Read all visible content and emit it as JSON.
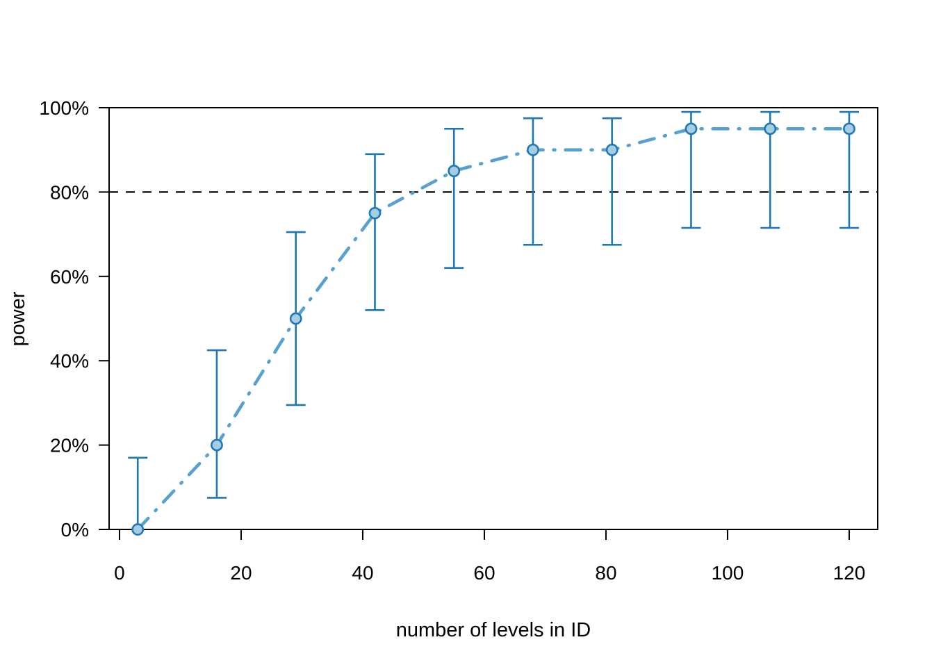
{
  "chart_data": {
    "type": "line",
    "title": "",
    "xlabel": "number of levels in ID",
    "ylabel": "power",
    "x_ticks": [
      0,
      20,
      40,
      60,
      80,
      100,
      120
    ],
    "y_ticks": [
      {
        "value": 0,
        "label": "0%"
      },
      {
        "value": 20,
        "label": "20%"
      },
      {
        "value": 40,
        "label": "40%"
      },
      {
        "value": 60,
        "label": "60%"
      },
      {
        "value": 80,
        "label": "80%"
      },
      {
        "value": 100,
        "label": "100%"
      }
    ],
    "xlim": [
      -1.71,
      124.69
    ],
    "ylim": [
      0,
      100
    ],
    "grid": false,
    "legend": null,
    "reference_line": {
      "y": 80,
      "style": "dashed",
      "color": "#000000"
    },
    "series": [
      {
        "x": [
          3,
          16,
          29,
          42,
          55,
          68,
          81,
          94,
          107,
          120
        ],
        "y": [
          0,
          20,
          50,
          75,
          85,
          90,
          90,
          95,
          95,
          95
        ],
        "ci_low": [
          0,
          7.5,
          29.5,
          52,
          62,
          67.5,
          67.5,
          71.5,
          71.5,
          71.5
        ],
        "ci_high": [
          17,
          42.5,
          70.5,
          89,
          95,
          97.5,
          97.5,
          99,
          99,
          99
        ],
        "line_style": "dash-dot",
        "line_color": "#57A0CF",
        "errorbar_color": "#1F78B4",
        "marker": "circle",
        "marker_fill": "#A6CEE3",
        "marker_stroke": "#1F78B4"
      }
    ],
    "axis_color": "#000000",
    "text_color": "#000000",
    "background": "#FFFFFF"
  }
}
